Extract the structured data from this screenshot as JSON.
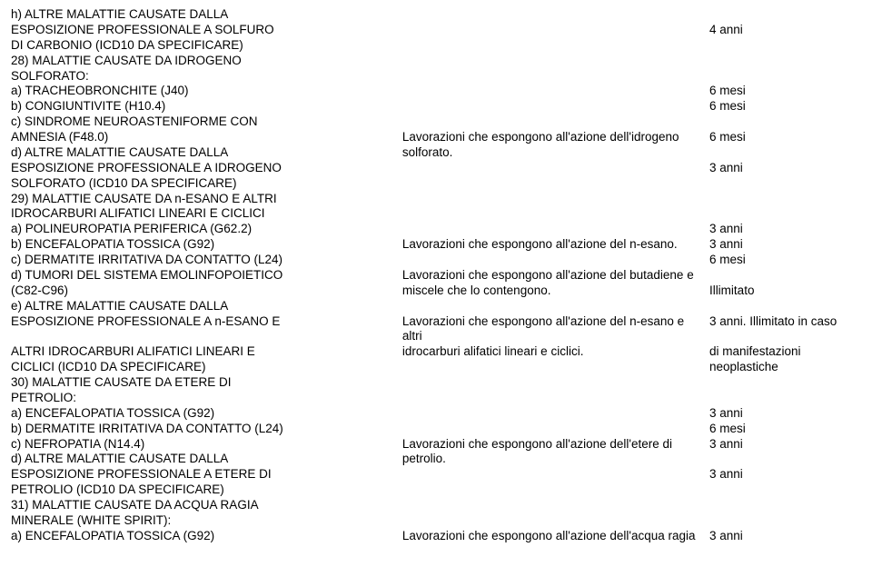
{
  "colors": {
    "background": "#ffffff",
    "text": "#000000"
  },
  "entries": [
    {
      "left": [
        "h) ALTRE MALATTIE CAUSATE DALLA"
      ],
      "mid": [
        ""
      ],
      "right": [
        ""
      ]
    },
    {
      "left": [
        "ESPOSIZIONE PROFESSIONALE A SOLFURO"
      ],
      "mid": [
        ""
      ],
      "right": [
        "4 anni"
      ]
    },
    {
      "left": [
        "DI CARBONIO (ICD10 DA SPECIFICARE)"
      ],
      "mid": [
        ""
      ],
      "right": [
        ""
      ]
    },
    {
      "left": [
        "28) MALATTIE CAUSATE DA IDROGENO"
      ],
      "mid": [
        ""
      ],
      "right": [
        ""
      ]
    },
    {
      "left": [
        "SOLFORATO:"
      ],
      "mid": [
        ""
      ],
      "right": [
        ""
      ]
    },
    {
      "left": [
        "a) TRACHEOBRONCHITE (J40)"
      ],
      "mid": [
        ""
      ],
      "right": [
        "6 mesi"
      ]
    },
    {
      "left": [
        "b) CONGIUNTIVITE (H10.4)"
      ],
      "mid": [
        ""
      ],
      "right": [
        "6 mesi"
      ]
    },
    {
      "left": [
        "c) SINDROME NEUROASTENIFORME CON"
      ],
      "mid": [
        ""
      ],
      "right": [
        ""
      ]
    },
    {
      "left": [
        "AMNESIA (F48.0)"
      ],
      "mid": [
        "Lavorazioni che espongono all'azione dell'idrogeno"
      ],
      "right": [
        "6 mesi"
      ]
    },
    {
      "left": [
        "d) ALTRE MALATTIE CAUSATE DALLA"
      ],
      "mid": [
        "solforato."
      ],
      "right": [
        ""
      ]
    },
    {
      "left": [
        "ESPOSIZIONE PROFESSIONALE A IDROGENO"
      ],
      "mid": [
        ""
      ],
      "right": [
        "3 anni"
      ]
    },
    {
      "left": [
        "SOLFORATO (ICD10 DA SPECIFICARE)"
      ],
      "mid": [
        ""
      ],
      "right": [
        ""
      ]
    },
    {
      "left": [
        "29) MALATTIE CAUSATE DA n-ESANO E ALTRI"
      ],
      "mid": [
        ""
      ],
      "right": [
        ""
      ]
    },
    {
      "left": [
        "IDROCARBURI ALIFATICI LINEARI E CICLICI"
      ],
      "mid": [
        ""
      ],
      "right": [
        ""
      ]
    },
    {
      "left": [
        "a) POLINEUROPATIA PERIFERICA (G62.2)"
      ],
      "mid": [
        ""
      ],
      "right": [
        "3 anni"
      ]
    },
    {
      "left": [
        "b) ENCEFALOPATIA TOSSICA (G92)"
      ],
      "mid": [
        "Lavorazioni che espongono all'azione del n-esano."
      ],
      "right": [
        "3 anni"
      ]
    },
    {
      "left": [
        "c) DERMATITE IRRITATIVA DA CONTATTO (L24)"
      ],
      "mid": [
        ""
      ],
      "right": [
        "6 mesi"
      ]
    },
    {
      "left": [
        "d) TUMORI DEL SISTEMA EMOLINFOPOIETICO"
      ],
      "mid": [
        "Lavorazioni che espongono all'azione del butadiene e"
      ],
      "right": [
        ""
      ]
    },
    {
      "left": [
        "(C82-C96)"
      ],
      "mid": [
        "miscele che lo contengono."
      ],
      "right": [
        "Illimitato"
      ]
    },
    {
      "left": [
        "e) ALTRE MALATTIE CAUSATE DALLA"
      ],
      "mid": [
        ""
      ],
      "right": [
        ""
      ]
    },
    {
      "left": [
        "ESPOSIZIONE PROFESSIONALE A n-ESANO E"
      ],
      "mid": [
        "Lavorazioni che espongono all'azione del n-esano e altri"
      ],
      "right": [
        "3 anni. Illimitato in caso"
      ]
    },
    {
      "left": [
        "ALTRI IDROCARBURI ALIFATICI LINEARI E"
      ],
      "mid": [
        "idrocarburi alifatici lineari e ciclici."
      ],
      "right": [
        "di manifestazioni"
      ]
    },
    {
      "left": [
        "CICLICI (ICD10 DA SPECIFICARE)"
      ],
      "mid": [
        ""
      ],
      "right": [
        "neoplastiche"
      ]
    },
    {
      "left": [
        "30) MALATTIE CAUSATE DA ETERE DI"
      ],
      "mid": [
        ""
      ],
      "right": [
        ""
      ]
    },
    {
      "left": [
        "PETROLIO:"
      ],
      "mid": [
        ""
      ],
      "right": [
        ""
      ]
    },
    {
      "left": [
        "a) ENCEFALOPATIA TOSSICA (G92)"
      ],
      "mid": [
        ""
      ],
      "right": [
        "3 anni"
      ]
    },
    {
      "left": [
        "b) DERMATITE IRRITATIVA DA CONTATTO (L24)"
      ],
      "mid": [
        ""
      ],
      "right": [
        "6 mesi"
      ]
    },
    {
      "left": [
        "c) NEFROPATIA (N14.4)"
      ],
      "mid": [
        "Lavorazioni che espongono all'azione dell'etere di"
      ],
      "right": [
        "3 anni"
      ]
    },
    {
      "left": [
        "d) ALTRE MALATTIE CAUSATE DALLA"
      ],
      "mid": [
        "petrolio."
      ],
      "right": [
        ""
      ]
    },
    {
      "left": [
        "ESPOSIZIONE PROFESSIONALE A ETERE DI"
      ],
      "mid": [
        ""
      ],
      "right": [
        "3 anni"
      ]
    },
    {
      "left": [
        "PETROLIO (ICD10 DA SPECIFICARE)"
      ],
      "mid": [
        ""
      ],
      "right": [
        ""
      ]
    },
    {
      "left": [
        "31) MALATTIE CAUSATE DA ACQUA RAGIA"
      ],
      "mid": [
        ""
      ],
      "right": [
        ""
      ]
    },
    {
      "left": [
        "MINERALE (WHITE SPIRIT):"
      ],
      "mid": [
        ""
      ],
      "right": [
        ""
      ]
    },
    {
      "left": [
        "a) ENCEFALOPATIA TOSSICA (G92)"
      ],
      "mid": [
        "Lavorazioni che espongono all'azione dell'acqua ragia"
      ],
      "right": [
        "3 anni"
      ]
    }
  ]
}
